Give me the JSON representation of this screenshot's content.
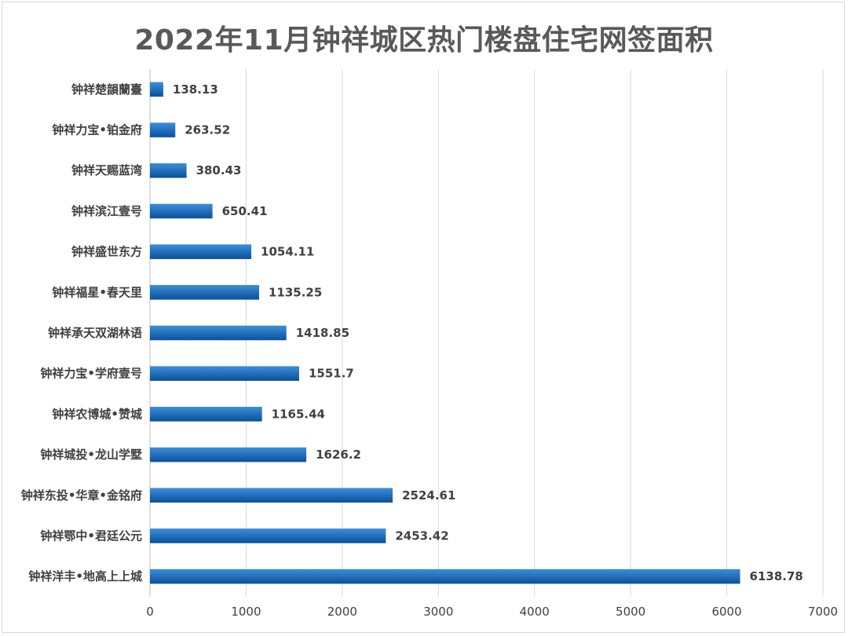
{
  "chart_data": {
    "type": "bar",
    "orientation": "horizontal",
    "title": "2022年11月钟祥城区热门楼盘住宅网签面积",
    "xlabel": "",
    "ylabel": "",
    "xlim": [
      0,
      7000
    ],
    "ticks": [
      0,
      1000,
      2000,
      3000,
      4000,
      5000,
      6000,
      7000
    ],
    "grid": true,
    "legend": "none",
    "bar_color_top": "#3b8fd9",
    "bar_color_bottom": "#0b4f9c",
    "categories": [
      "钟祥楚韻蘭臺",
      "钟祥力宝•铂金府",
      "钟祥天赐蓝湾",
      "钟祥滨江壹号",
      "钟祥盛世东方",
      "钟祥福星•春天里",
      "钟祥承天双湖林语",
      "钟祥力宝•学府壹号",
      "钟祥农博城•赞城",
      "钟祥城投•龙山学墅",
      "钟祥东投•华章•金铭府",
      "钟祥鄂中•君廷公元",
      "钟祥洋丰•地高上上城"
    ],
    "values": [
      138.13,
      263.52,
      380.43,
      650.41,
      1054.11,
      1135.25,
      1418.85,
      1551.7,
      1165.44,
      1626.2,
      2524.61,
      2453.42,
      6138.78
    ],
    "value_labels": [
      "138.13",
      "263.52",
      "380.43",
      "650.41",
      "1054.11",
      "1135.25",
      "1418.85",
      "1551.7",
      "1165.44",
      "1626.2",
      "2524.61",
      "2453.42",
      "6138.78"
    ]
  }
}
